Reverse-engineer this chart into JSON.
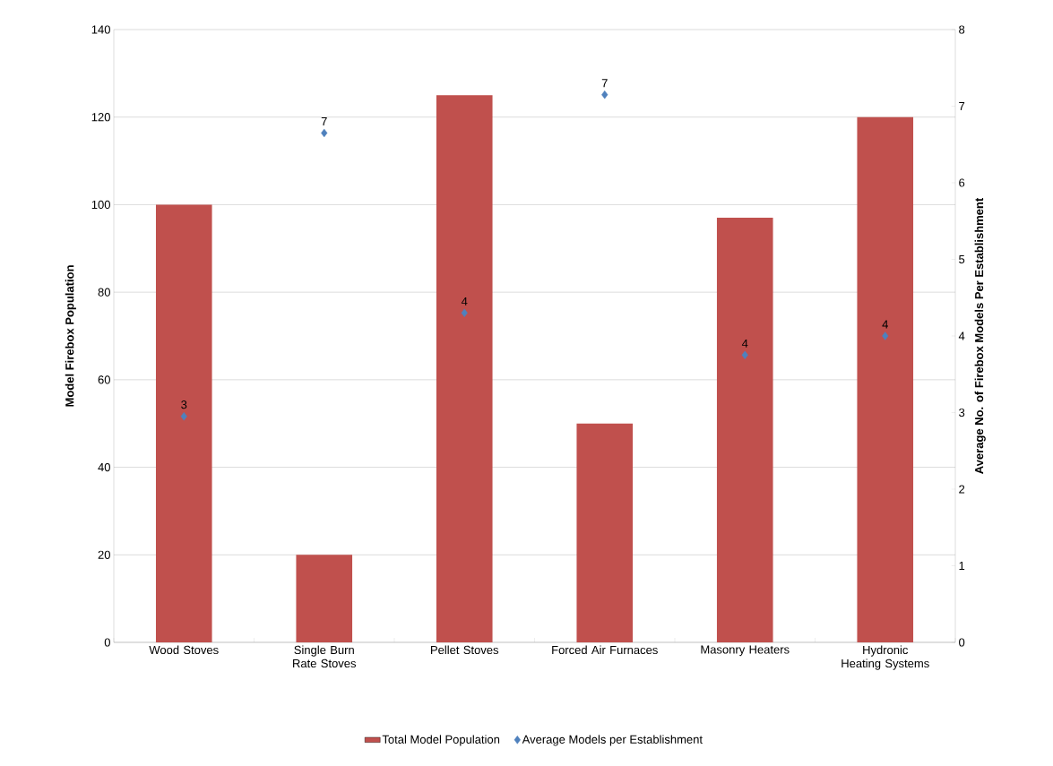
{
  "chart_data": {
    "type": "bar",
    "categories": [
      "Wood Stoves",
      "Single Burn Rate Stoves",
      "Pellet Stoves",
      "Forced Air Furnaces",
      "Masonry Heaters",
      "Hydronic Heating Systems"
    ],
    "ylabel": "Model Firebox Population",
    "y2label": "Average No. of Firebox Models Per Establishment",
    "series": [
      {
        "name": "Total Model Population",
        "color": "#c0504d",
        "values": [
          100,
          20,
          125,
          50,
          97,
          120
        ]
      },
      {
        "name": "Average Models per Establishment",
        "type": "scatter",
        "axis": "y2",
        "marker": "diamond",
        "color": "#4f81bd",
        "values": [
          2.95,
          6.65,
          4.3,
          7.15,
          3.75,
          4.0
        ],
        "value_labels": [
          "3",
          "7",
          "4",
          "7",
          "4",
          "4"
        ]
      }
    ],
    "ylim": [
      0,
      140
    ],
    "yticks": [
      0,
      20,
      40,
      60,
      80,
      100,
      120,
      140
    ],
    "y2lim": [
      0,
      8
    ],
    "y2ticks": [
      0,
      1,
      2,
      3,
      4,
      5,
      6,
      7,
      8
    ],
    "grid": "y",
    "legend": "bottom"
  }
}
